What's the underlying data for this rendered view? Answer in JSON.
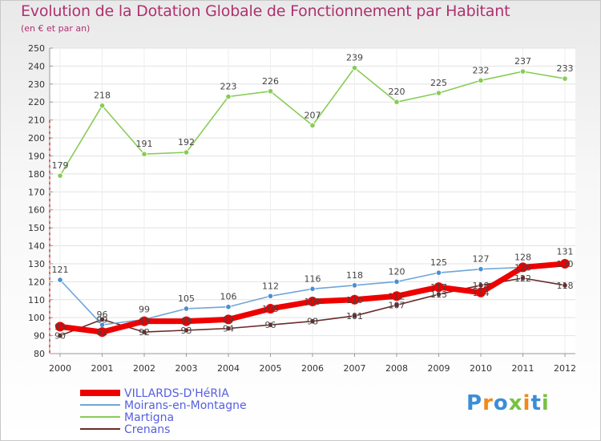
{
  "chart_data": {
    "type": "line",
    "title": "Evolution de la Dotation Globale de Fonctionnement par Habitant",
    "subtitle": "(en € et par an)",
    "x": [
      "2000",
      "2001",
      "2002",
      "2003",
      "2004",
      "2005",
      "2006",
      "2007",
      "2008",
      "2009",
      "2010",
      "2011",
      "2012"
    ],
    "ylim": [
      80,
      250
    ],
    "yticks": [
      80,
      90,
      100,
      110,
      120,
      130,
      140,
      150,
      160,
      170,
      180,
      190,
      200,
      210,
      220,
      230,
      240,
      250
    ],
    "series": [
      {
        "name": "VILLARDS-D'HéRIA",
        "color": "#ee0000",
        "values": [
          95,
          92,
          98,
          98,
          99,
          105,
          109,
          110,
          112,
          117,
          114,
          128,
          130
        ],
        "labels": [
          "95",
          "92",
          "98",
          "98",
          "99",
          "105",
          "109",
          "110",
          "112",
          "117",
          "114",
          "128",
          "130"
        ]
      },
      {
        "name": "Moirans-en-Montagne",
        "color": "#6fa6d6",
        "values": [
          121,
          96,
          99,
          105,
          106,
          112,
          116,
          118,
          120,
          125,
          127,
          128,
          131
        ],
        "labels": [
          "121",
          "96",
          "99",
          "105",
          "106",
          "112",
          "116",
          "118",
          "120",
          "125",
          "127",
          "128",
          "131"
        ]
      },
      {
        "name": "Martigna",
        "color": "#88cc55",
        "values": [
          179,
          218,
          191,
          192,
          223,
          226,
          207,
          239,
          220,
          225,
          232,
          237,
          233
        ],
        "labels": [
          "179",
          "218",
          "191",
          "192",
          "223",
          "226",
          "207",
          "239",
          "220",
          "225",
          "232",
          "237",
          "233"
        ]
      },
      {
        "name": "Crenans",
        "color": "#6b2a2a",
        "values": [
          90,
          99,
          92,
          93,
          94,
          96,
          98,
          101,
          107,
          113,
          118,
          122,
          118
        ],
        "labels": [
          "90",
          "99",
          "92",
          "93",
          "94",
          "96",
          "98",
          "101",
          "107",
          "113",
          "118",
          "122",
          "118"
        ]
      }
    ]
  },
  "legend": {
    "position": "bottom-left"
  },
  "logo": {
    "text": "Proxiti"
  }
}
